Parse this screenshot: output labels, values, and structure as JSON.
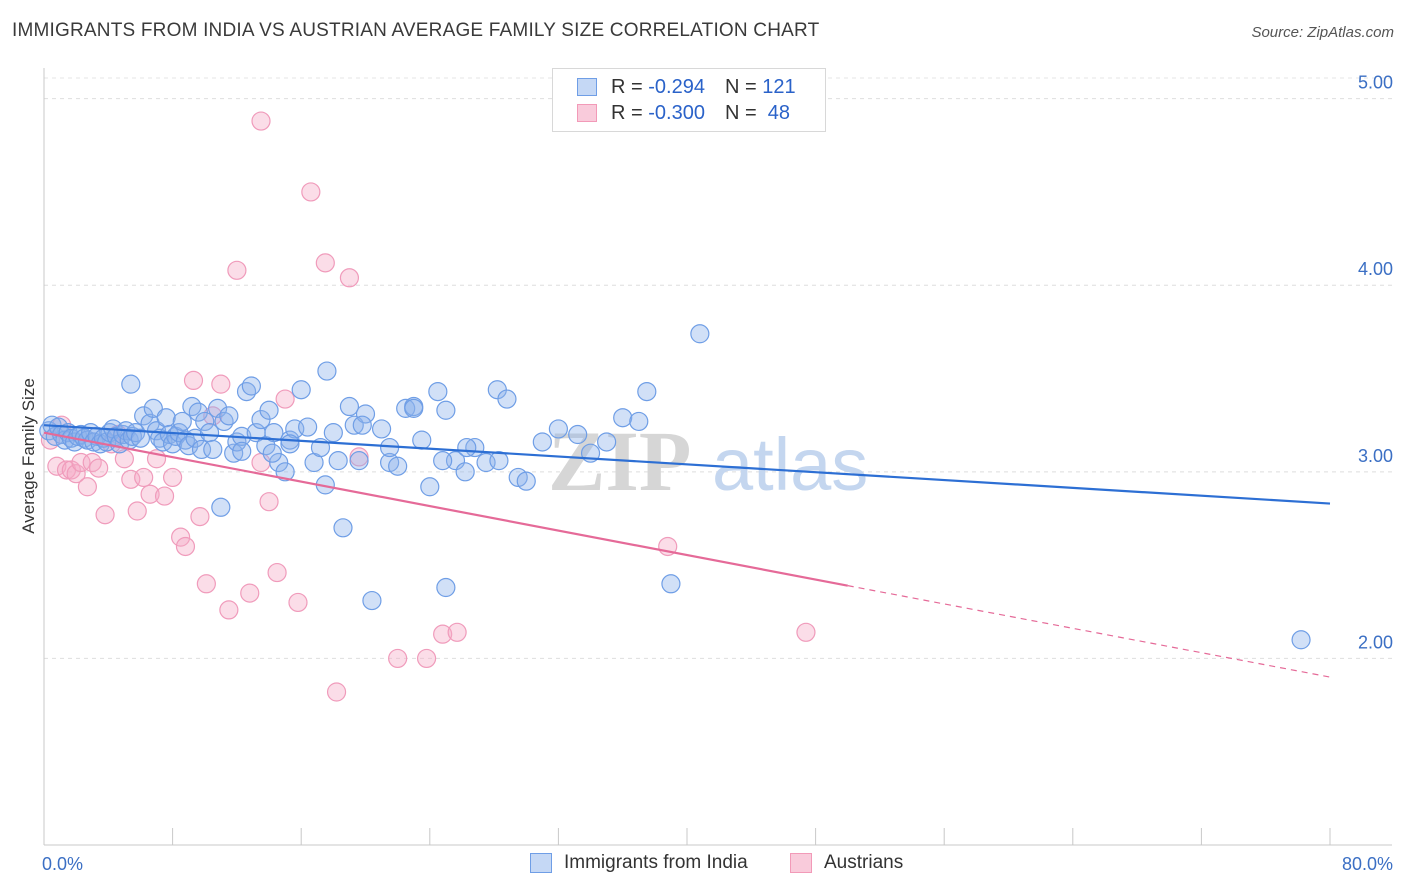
{
  "title": "IMMIGRANTS FROM INDIA VS AUSTRIAN AVERAGE FAMILY SIZE CORRELATION CHART",
  "source": "Source: ZipAtlas.com",
  "legend": {
    "rows": [
      {
        "r_label": "R = ",
        "r_value": "-0.294",
        "n_label": "N = ",
        "n_value": "121"
      },
      {
        "r_label": "R = ",
        "r_value": "-0.300",
        "n_label": "N = ",
        "n_value": " 48"
      }
    ]
  },
  "bottom_legend": [
    "Immigrants from India",
    "Austrians"
  ],
  "watermark": {
    "zip": "ZIP",
    "atlas": "atlas"
  },
  "colors": {
    "india": "#6f9ee6",
    "austrians": "#f29ab8",
    "india_line": "#2d6fd4",
    "austrians_line": "#e56a98"
  },
  "chart_data": {
    "type": "scatter",
    "title": "IMMIGRANTS FROM INDIA VS AUSTRIAN AVERAGE FAMILY SIZE CORRELATION CHART",
    "xlabel": "",
    "ylabel": "Average Family Size",
    "xlim": [
      0,
      80
    ],
    "ylim": [
      1.0,
      5.1
    ],
    "x_tick_labels": [
      "0.0%",
      "80.0%"
    ],
    "y_ticks": [
      2.0,
      3.0,
      4.0,
      5.0
    ],
    "y_tick_labels": [
      "2.00",
      "3.00",
      "4.00",
      "5.00"
    ],
    "grid": true,
    "legend_position": "top-center",
    "series": [
      {
        "name": "Immigrants from India",
        "r": -0.294,
        "n": 121,
        "trend": {
          "x0": 0,
          "y0": 3.25,
          "x1": 80,
          "y1": 2.83
        },
        "points": [
          [
            0.3,
            3.22
          ],
          [
            0.5,
            3.25
          ],
          [
            0.7,
            3.19
          ],
          [
            0.9,
            3.24
          ],
          [
            1.1,
            3.2
          ],
          [
            1.3,
            3.17
          ],
          [
            1.5,
            3.21
          ],
          [
            1.7,
            3.18
          ],
          [
            1.9,
            3.16
          ],
          [
            2.1,
            3.19
          ],
          [
            2.3,
            3.2
          ],
          [
            2.5,
            3.18
          ],
          [
            2.7,
            3.17
          ],
          [
            2.9,
            3.21
          ],
          [
            3.1,
            3.16
          ],
          [
            3.3,
            3.19
          ],
          [
            3.5,
            3.15
          ],
          [
            3.7,
            3.18
          ],
          [
            3.9,
            3.16
          ],
          [
            4.1,
            3.21
          ],
          [
            4.3,
            3.23
          ],
          [
            4.5,
            3.19
          ],
          [
            4.7,
            3.15
          ],
          [
            4.9,
            3.2
          ],
          [
            5.1,
            3.22
          ],
          [
            5.3,
            3.17
          ],
          [
            5.5,
            3.19
          ],
          [
            5.7,
            3.21
          ],
          [
            6.0,
            3.18
          ],
          [
            6.2,
            3.3
          ],
          [
            5.4,
            3.47
          ],
          [
            6.6,
            3.26
          ],
          [
            6.8,
            3.34
          ],
          [
            7.0,
            3.22
          ],
          [
            7.2,
            3.18
          ],
          [
            7.4,
            3.16
          ],
          [
            7.6,
            3.29
          ],
          [
            7.8,
            3.2
          ],
          [
            8.0,
            3.15
          ],
          [
            8.2,
            3.19
          ],
          [
            8.4,
            3.21
          ],
          [
            8.6,
            3.27
          ],
          [
            8.8,
            3.17
          ],
          [
            9.0,
            3.14
          ],
          [
            9.2,
            3.35
          ],
          [
            9.4,
            3.18
          ],
          [
            9.6,
            3.32
          ],
          [
            9.8,
            3.12
          ],
          [
            10.0,
            3.27
          ],
          [
            10.3,
            3.21
          ],
          [
            10.5,
            3.12
          ],
          [
            10.8,
            3.34
          ],
          [
            11.0,
            2.81
          ],
          [
            11.2,
            3.27
          ],
          [
            11.5,
            3.3
          ],
          [
            11.8,
            3.1
          ],
          [
            12.0,
            3.16
          ],
          [
            12.3,
            3.19
          ],
          [
            12.6,
            3.43
          ],
          [
            12.9,
            3.46
          ],
          [
            13.2,
            3.21
          ],
          [
            13.5,
            3.28
          ],
          [
            13.8,
            3.14
          ],
          [
            14.0,
            3.33
          ],
          [
            14.3,
            3.21
          ],
          [
            14.6,
            3.05
          ],
          [
            15.0,
            3.0
          ],
          [
            15.3,
            3.17
          ],
          [
            15.6,
            3.23
          ],
          [
            16.0,
            3.44
          ],
          [
            16.4,
            3.24
          ],
          [
            16.8,
            3.05
          ],
          [
            17.2,
            3.13
          ],
          [
            17.6,
            3.54
          ],
          [
            18.0,
            3.21
          ],
          [
            18.3,
            3.06
          ],
          [
            18.6,
            2.7
          ],
          [
            19.0,
            3.35
          ],
          [
            19.3,
            3.25
          ],
          [
            19.6,
            3.06
          ],
          [
            20.0,
            3.31
          ],
          [
            20.4,
            2.31
          ],
          [
            21.0,
            3.23
          ],
          [
            21.5,
            3.05
          ],
          [
            22.0,
            3.03
          ],
          [
            22.5,
            3.34
          ],
          [
            23.0,
            3.35
          ],
          [
            23.5,
            3.17
          ],
          [
            24.0,
            2.92
          ],
          [
            24.5,
            3.43
          ],
          [
            25.0,
            3.33
          ],
          [
            25.6,
            3.06
          ],
          [
            26.2,
            3.0
          ],
          [
            26.8,
            3.13
          ],
          [
            27.5,
            3.05
          ],
          [
            28.2,
            3.44
          ],
          [
            28.8,
            3.39
          ],
          [
            29.5,
            2.97
          ],
          [
            30.0,
            2.95
          ],
          [
            31.0,
            3.16
          ],
          [
            32.0,
            3.23
          ],
          [
            33.2,
            3.2
          ],
          [
            34.0,
            3.1
          ],
          [
            35.0,
            3.16
          ],
          [
            36.0,
            3.29
          ],
          [
            37.0,
            3.27
          ],
          [
            37.5,
            3.43
          ],
          [
            39.0,
            2.4
          ],
          [
            40.8,
            3.74
          ],
          [
            78.2,
            2.1
          ],
          [
            17.5,
            2.93
          ],
          [
            19.8,
            3.25
          ],
          [
            21.5,
            3.13
          ],
          [
            23.0,
            3.34
          ],
          [
            24.8,
            3.06
          ],
          [
            26.3,
            3.13
          ],
          [
            28.3,
            3.06
          ],
          [
            12.3,
            3.11
          ],
          [
            14.2,
            3.1
          ],
          [
            15.3,
            3.15
          ],
          [
            25.0,
            2.38
          ]
        ]
      },
      {
        "name": "Austrians",
        "r": -0.3,
        "n": 48,
        "trend": {
          "x0": 0,
          "y0": 3.21,
          "x1": 50,
          "y1": 2.39,
          "dash_to": {
            "x": 80,
            "y": 1.9
          }
        },
        "points": [
          [
            0.4,
            3.17
          ],
          [
            0.8,
            3.03
          ],
          [
            1.1,
            3.25
          ],
          [
            1.4,
            3.01
          ],
          [
            1.7,
            3.01
          ],
          [
            2.0,
            2.99
          ],
          [
            2.3,
            3.05
          ],
          [
            2.7,
            2.92
          ],
          [
            3.0,
            3.05
          ],
          [
            3.4,
            3.02
          ],
          [
            3.8,
            2.77
          ],
          [
            4.2,
            3.15
          ],
          [
            4.6,
            3.2
          ],
          [
            5.0,
            3.07
          ],
          [
            5.4,
            2.96
          ],
          [
            5.8,
            2.79
          ],
          [
            6.2,
            2.97
          ],
          [
            6.6,
            2.88
          ],
          [
            7.0,
            3.07
          ],
          [
            7.5,
            2.87
          ],
          [
            8.0,
            2.97
          ],
          [
            8.5,
            2.65
          ],
          [
            8.8,
            2.6
          ],
          [
            9.3,
            3.49
          ],
          [
            9.7,
            2.76
          ],
          [
            10.1,
            2.4
          ],
          [
            10.5,
            3.3
          ],
          [
            11.0,
            3.47
          ],
          [
            11.5,
            2.26
          ],
          [
            12.0,
            4.08
          ],
          [
            12.8,
            2.35
          ],
          [
            13.5,
            3.05
          ],
          [
            14.0,
            2.84
          ],
          [
            14.5,
            2.46
          ],
          [
            15.0,
            3.39
          ],
          [
            15.8,
            2.3
          ],
          [
            16.6,
            4.5
          ],
          [
            17.5,
            4.12
          ],
          [
            18.2,
            1.82
          ],
          [
            19.0,
            4.04
          ],
          [
            19.6,
            3.08
          ],
          [
            13.5,
            4.88
          ],
          [
            22.0,
            2.0
          ],
          [
            23.8,
            2.0
          ],
          [
            24.8,
            2.13
          ],
          [
            25.7,
            2.14
          ],
          [
            38.8,
            2.6
          ],
          [
            47.4,
            2.14
          ]
        ]
      }
    ]
  }
}
